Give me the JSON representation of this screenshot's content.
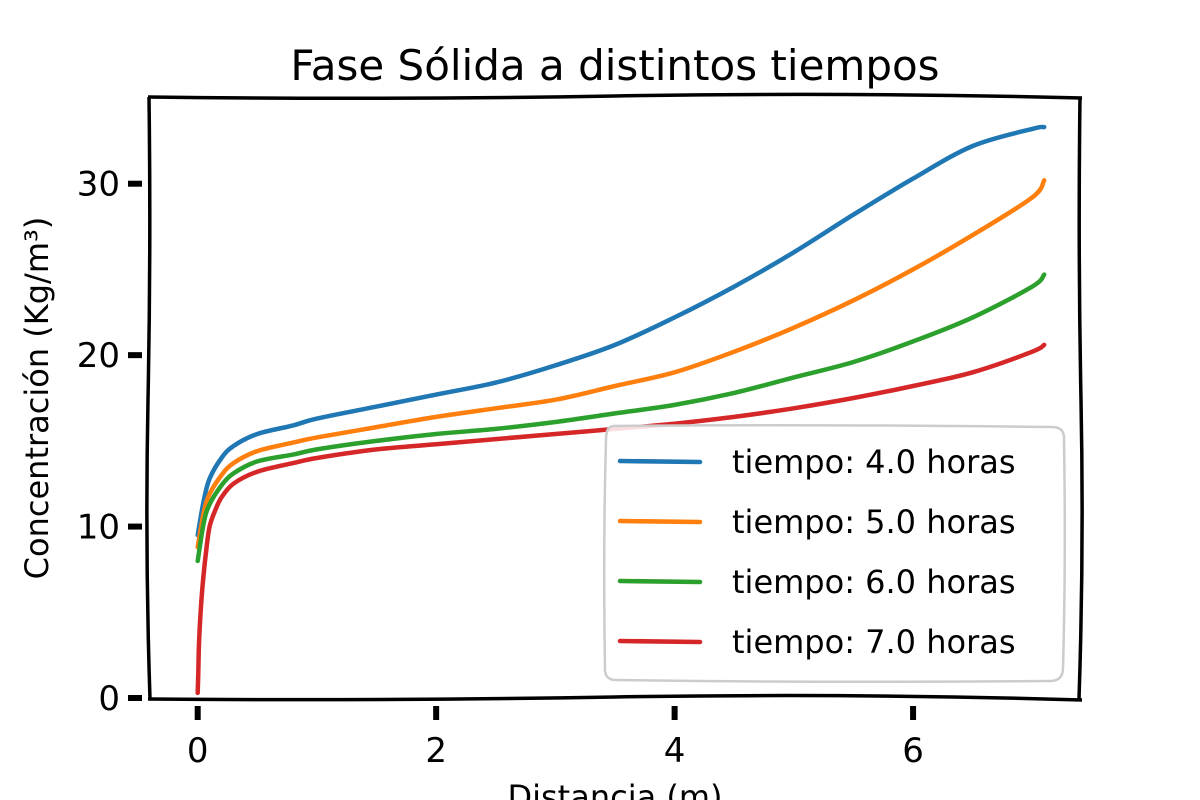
{
  "chart_data": {
    "type": "line",
    "title": "Fase Sólida a distintos tiempos",
    "xlabel": "Distancia (m)",
    "ylabel": "Concentración (Kg/m³)",
    "xlim": [
      -0.4,
      7.4
    ],
    "ylim": [
      0,
      35
    ],
    "xticks": [
      "0",
      "2",
      "4",
      "6"
    ],
    "yticks": [
      "0",
      "10",
      "20",
      "30"
    ],
    "grid": false,
    "legend_position": "lower-right",
    "series": [
      {
        "name": "tiempo: 4.0 horas",
        "color": "#1f77b4",
        "x": [
          0,
          0.05,
          0.1,
          0.2,
          0.3,
          0.5,
          0.8,
          1.0,
          1.5,
          2.0,
          2.5,
          3.0,
          3.5,
          4.0,
          4.5,
          5.0,
          5.5,
          6.0,
          6.5,
          7.0,
          7.1
        ],
        "y": [
          9.5,
          11.5,
          12.8,
          14.0,
          14.7,
          15.4,
          15.9,
          16.3,
          17.0,
          17.7,
          18.4,
          19.4,
          20.6,
          22.2,
          24.0,
          26.0,
          28.2,
          30.3,
          32.2,
          33.2,
          33.3
        ]
      },
      {
        "name": "tiempo: 5.0 horas",
        "color": "#ff7f0e",
        "x": [
          0,
          0.05,
          0.1,
          0.2,
          0.3,
          0.5,
          0.8,
          1.0,
          1.5,
          2.0,
          2.5,
          3.0,
          3.5,
          4.0,
          4.5,
          5.0,
          5.5,
          6.0,
          6.5,
          7.0,
          7.1
        ],
        "y": [
          8.8,
          10.8,
          11.9,
          13.0,
          13.7,
          14.4,
          14.9,
          15.2,
          15.8,
          16.4,
          16.9,
          17.4,
          18.2,
          19.0,
          20.2,
          21.6,
          23.2,
          25.0,
          27.0,
          29.2,
          30.2
        ]
      },
      {
        "name": "tiempo: 6.0 horas",
        "color": "#2ca02c",
        "x": [
          0,
          0.05,
          0.1,
          0.2,
          0.3,
          0.5,
          0.8,
          1.0,
          1.5,
          2.0,
          2.5,
          3.0,
          3.5,
          4.0,
          4.5,
          5.0,
          5.5,
          6.0,
          6.5,
          7.0,
          7.1
        ],
        "y": [
          8.0,
          10.2,
          11.3,
          12.4,
          13.1,
          13.8,
          14.2,
          14.5,
          15.0,
          15.4,
          15.7,
          16.1,
          16.6,
          17.1,
          17.8,
          18.7,
          19.6,
          20.8,
          22.2,
          24.0,
          24.7
        ]
      },
      {
        "name": "tiempo: 7.0 horas",
        "color": "#d62728",
        "x": [
          0,
          0.005,
          0.01,
          0.02,
          0.04,
          0.07,
          0.1,
          0.15,
          0.2,
          0.3,
          0.5,
          0.8,
          1.0,
          1.5,
          2.0,
          2.5,
          3.0,
          3.5,
          4.0,
          4.5,
          5.0,
          5.5,
          6.0,
          6.5,
          7.0,
          7.1
        ],
        "y": [
          0.3,
          1.5,
          3.0,
          4.5,
          6.5,
          8.5,
          10.0,
          11.0,
          11.7,
          12.5,
          13.2,
          13.7,
          14.0,
          14.5,
          14.8,
          15.1,
          15.4,
          15.7,
          16.0,
          16.4,
          16.9,
          17.5,
          18.2,
          19.0,
          20.2,
          20.6
        ]
      }
    ]
  }
}
